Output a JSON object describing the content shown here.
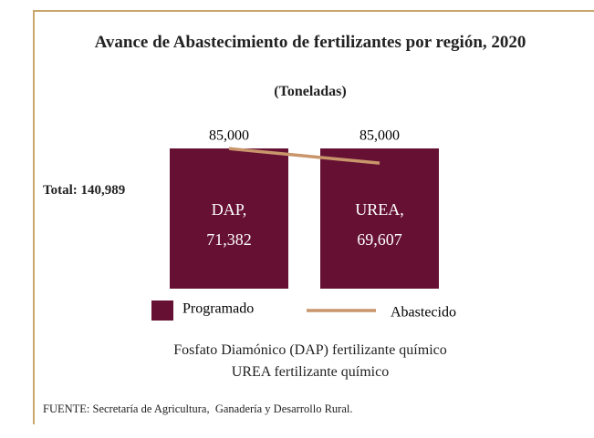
{
  "chart_data": {
    "type": "bar",
    "title": "Avance de Abastecimiento de fertilizantes por región, 2020",
    "subtitle": "(Toneladas)",
    "annotation": "Total: 140,989",
    "categories": [
      "DAP,",
      "UREA,"
    ],
    "ylim": [
      0,
      85000
    ],
    "y2lim": [
      54300,
      71400
    ],
    "series": [
      {
        "name": "Programado",
        "color": "#661133",
        "values": [
          85000,
          85000
        ],
        "value_labels": [
          "85,000",
          "85,000"
        ]
      },
      {
        "name": "Abastecido",
        "color": "#c9956b",
        "axis": "y2",
        "type": "line",
        "values": [
          71382,
          69607
        ],
        "value_labels": [
          "71,382",
          "69,607"
        ]
      }
    ],
    "notes": [
      "Fosfato Diamónico (DAP) fertilizante químico",
      "UREA fertilizante químico"
    ],
    "source": "FUENTE: Secretaría de Agricultura,  Ganadería y Desarrollo Rural."
  }
}
